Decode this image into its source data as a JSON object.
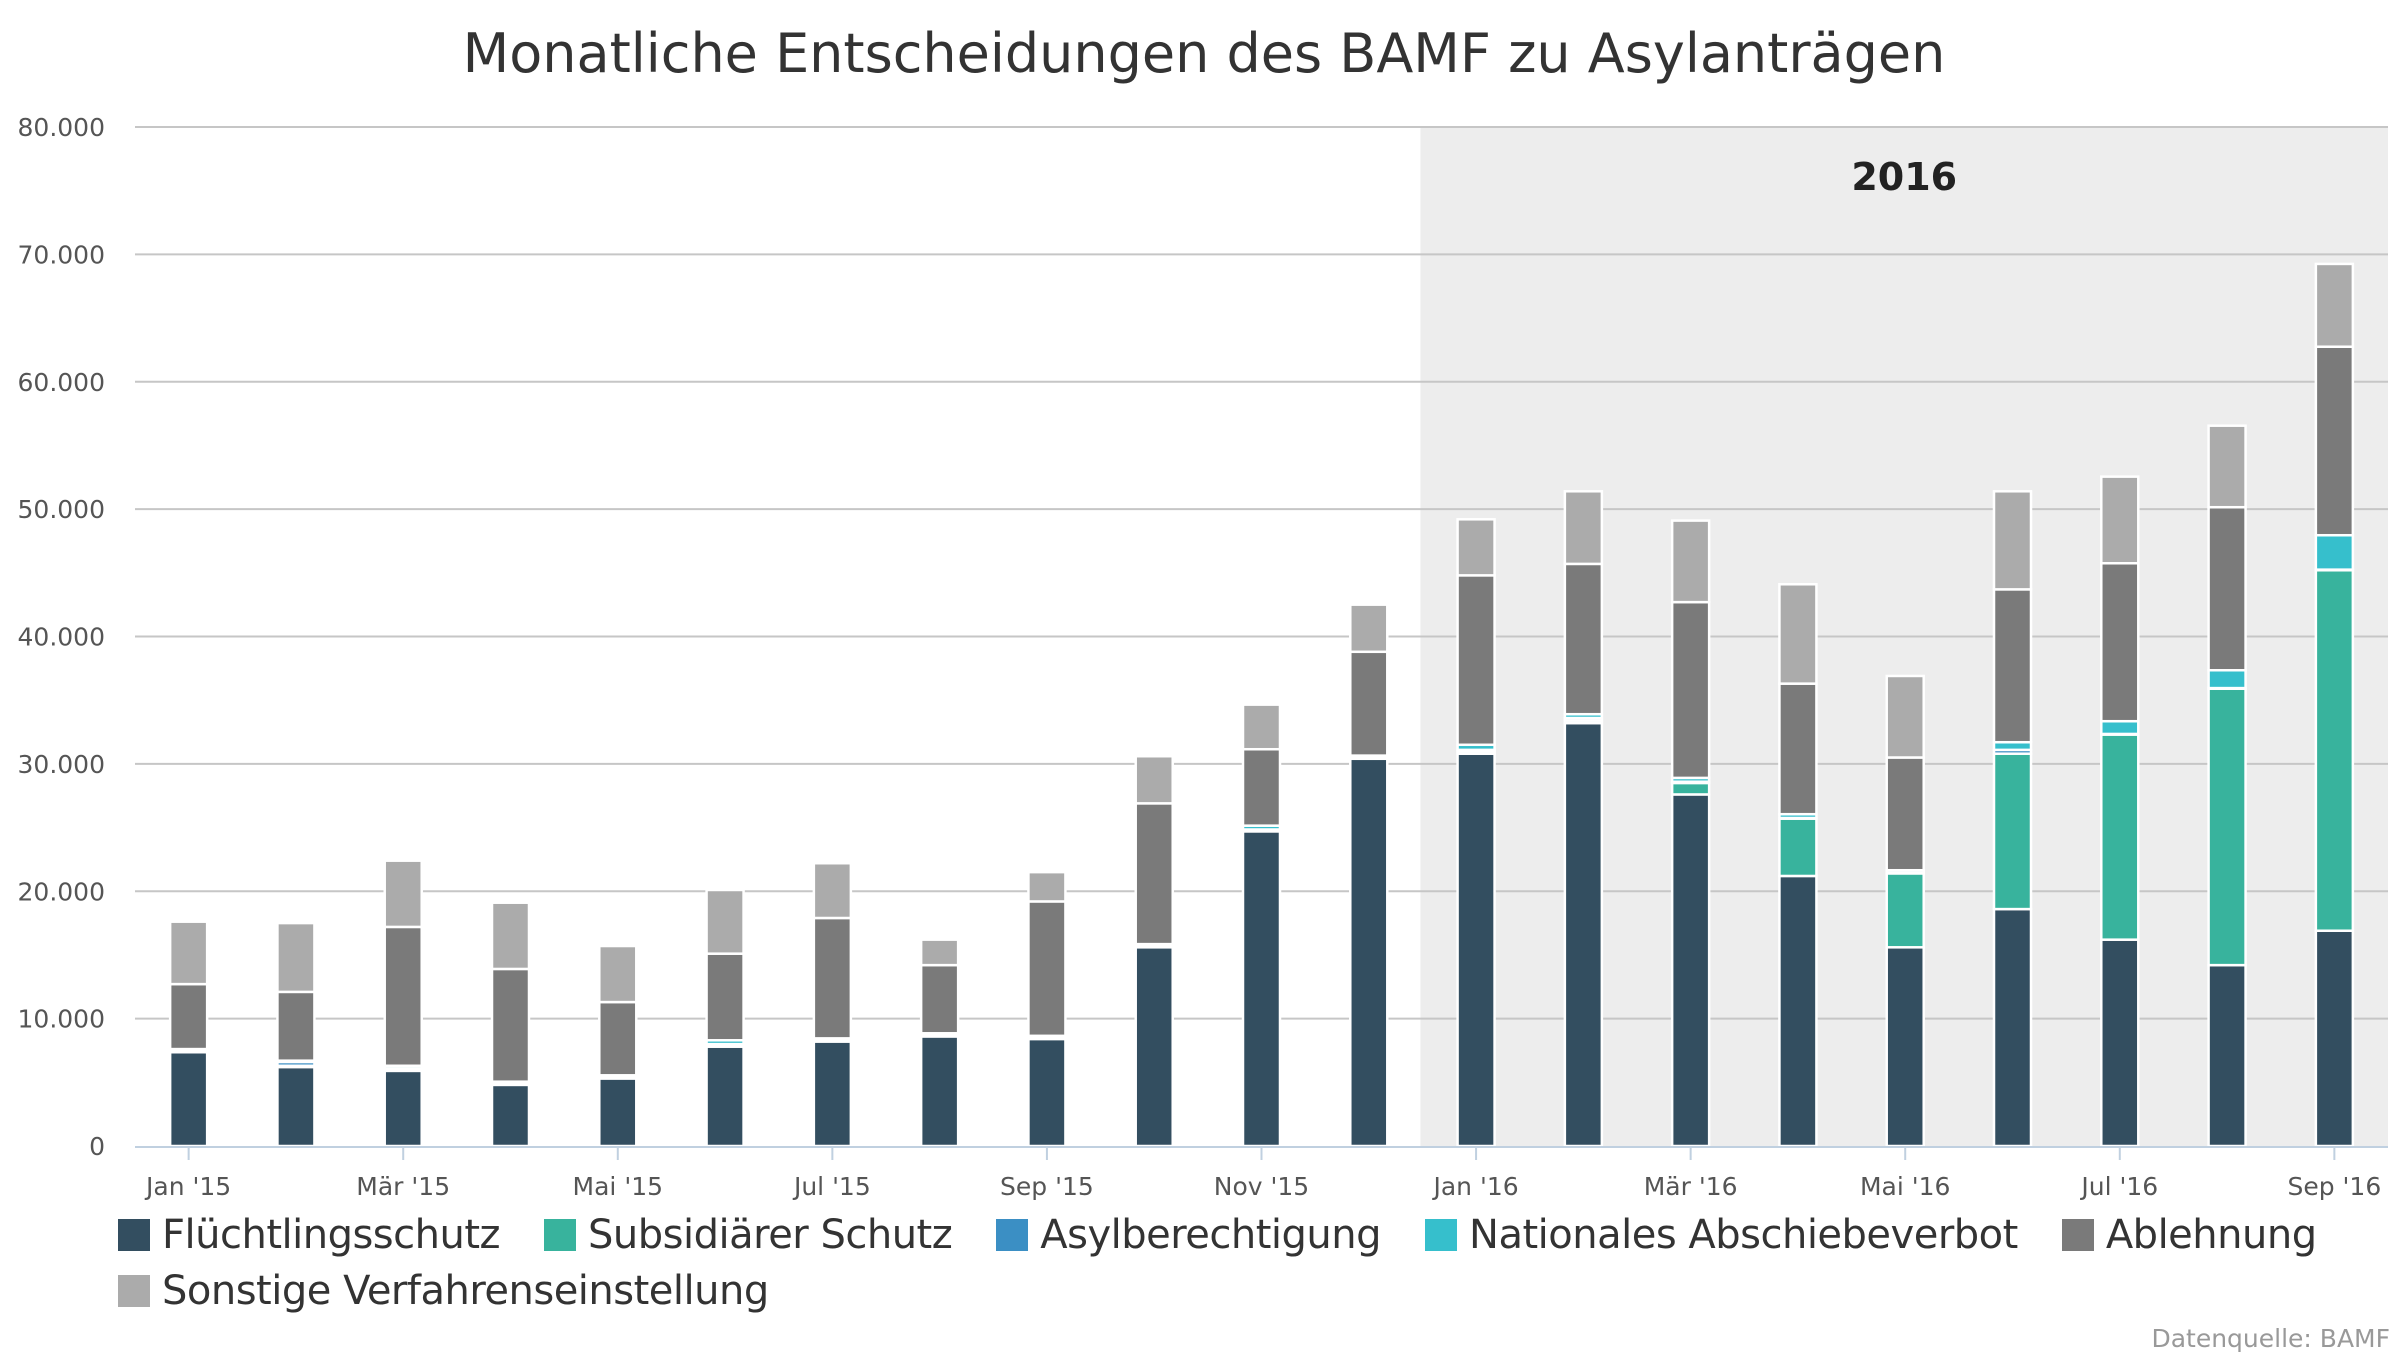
{
  "chart_data": {
    "type": "bar",
    "stacked": true,
    "title": "Monatliche Entscheidungen des BAMF zu Asylanträgen",
    "xlabel": "",
    "ylabel": "",
    "ylim": [
      0,
      80000
    ],
    "yticks": [
      0,
      10000,
      20000,
      30000,
      40000,
      50000,
      60000,
      70000,
      80000
    ],
    "ytick_labels": [
      "0",
      "10.000",
      "20.000",
      "30.000",
      "40.000",
      "50.000",
      "60.000",
      "70.000",
      "80.000"
    ],
    "grid": true,
    "legend_position": "bottom",
    "band": {
      "label": "2016",
      "from_index": 12,
      "color": "#ededed"
    },
    "categories": [
      "Jan '15",
      "Feb '15",
      "Mär '15",
      "Apr '15",
      "Mai '15",
      "Jun '15",
      "Jul '15",
      "Aug '15",
      "Sep '15",
      "Okt '15",
      "Nov '15",
      "Dez '15",
      "Jan '16",
      "Feb '16",
      "Mär '16",
      "Apr '16",
      "Mai '16",
      "Jun '16",
      "Jul '16",
      "Aug '16",
      "Sep '16"
    ],
    "xtick_labels": [
      "Jan '15",
      "",
      "Mär '15",
      "",
      "Mai '15",
      "",
      "Jul '15",
      "",
      "Sep '15",
      "",
      "Nov '15",
      "",
      "Jan '16",
      "",
      "Mär '16",
      "",
      "Mai '16",
      "",
      "Jul '16",
      "",
      "Sep '16"
    ],
    "series": [
      {
        "name": "Flüchtlingsschutz",
        "color": "#334e60",
        "values": [
          7360,
          6200,
          5900,
          4800,
          5300,
          7800,
          8200,
          8600,
          8400,
          15600,
          24700,
          30400,
          30800,
          33200,
          27600,
          21200,
          15600,
          18600,
          16200,
          14200,
          16900
        ]
      },
      {
        "name": "Subsidiärer Schutz",
        "color": "#38b39d",
        "values": [
          100,
          100,
          100,
          100,
          100,
          100,
          100,
          100,
          100,
          100,
          100,
          100,
          200,
          200,
          900,
          4500,
          5800,
          12200,
          16100,
          21700,
          28300
        ]
      },
      {
        "name": "Asylberechtigung",
        "color": "#3b8fc4",
        "values": [
          50,
          300,
          100,
          50,
          50,
          100,
          50,
          50,
          50,
          50,
          50,
          50,
          100,
          200,
          100,
          50,
          50,
          300,
          50,
          50,
          50
        ]
      },
      {
        "name": "Nationales Abschiebeverbot",
        "color": "#36bfcc",
        "values": [
          100,
          100,
          200,
          100,
          100,
          300,
          100,
          100,
          100,
          100,
          300,
          100,
          400,
          300,
          300,
          300,
          200,
          600,
          1000,
          1400,
          2700
        ]
      },
      {
        "name": "Ablehnung",
        "color": "#7a7a7a",
        "values": [
          5100,
          5400,
          10900,
          8850,
          5750,
          6800,
          9450,
          5350,
          10550,
          11050,
          6000,
          8150,
          13300,
          11800,
          13800,
          10250,
          8850,
          12000,
          12400,
          12800,
          14800
        ]
      },
      {
        "name": "Sonstige Verfahrenseinstellung",
        "color": "#ababab",
        "values": [
          4900,
          5400,
          5200,
          5200,
          4400,
          5000,
          4300,
          2000,
          2300,
          3700,
          3500,
          3700,
          4400,
          5700,
          6400,
          7800,
          6400,
          7700,
          6800,
          6400,
          6500
        ]
      }
    ],
    "source": "Datenquelle: BAMF"
  }
}
